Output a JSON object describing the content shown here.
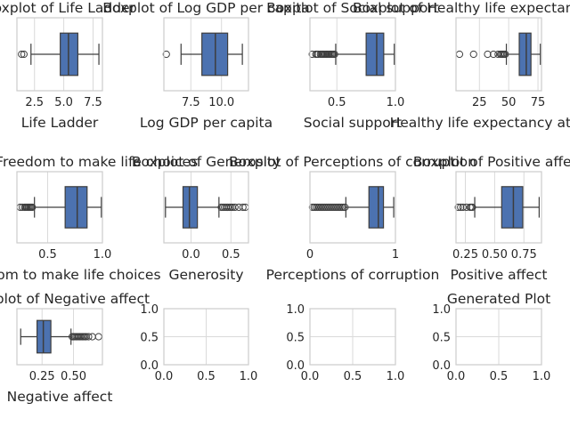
{
  "chart_data": [
    {
      "type": "box",
      "orient": "horizontal",
      "title": "Boxplot of Life Ladder",
      "xlabel": "Life Ladder",
      "ylabel": "",
      "xlim": [
        1.0,
        8.3
      ],
      "grid": true,
      "xticks": [
        2.5,
        5.0,
        7.5
      ],
      "xtick_labels": [
        "2.5",
        "5.0",
        "7.5"
      ],
      "stats": {
        "whislo": 2.2,
        "q1": 4.7,
        "med": 5.4,
        "q3": 6.2,
        "whishi": 8.0
      },
      "fliers": [
        1.4,
        1.6
      ]
    },
    {
      "type": "box",
      "orient": "horizontal",
      "title": "Boxplot of Log GDP per capita",
      "xlabel": "Log GDP per capita",
      "ylabel": "",
      "xlim": [
        5.3,
        12.2
      ],
      "grid": true,
      "xticks": [
        7.5,
        10.0
      ],
      "xtick_labels": [
        "7.5",
        "10.0"
      ],
      "stats": {
        "whislo": 6.7,
        "q1": 8.4,
        "med": 9.5,
        "q3": 10.5,
        "whishi": 11.7
      },
      "fliers": [
        5.5
      ]
    },
    {
      "type": "box",
      "orient": "horizontal",
      "title": "Boxplot of Social support",
      "xlabel": "Social support",
      "ylabel": "",
      "xlim": [
        0.27,
        1.0
      ],
      "grid": true,
      "xticks": [
        0.5,
        1.0
      ],
      "xtick_labels": [
        "0.5",
        "1.0"
      ],
      "stats": {
        "whislo": 0.49,
        "q1": 0.75,
        "med": 0.84,
        "q3": 0.9,
        "whishi": 0.99
      },
      "fliers": [
        0.29,
        0.32,
        0.33,
        0.34,
        0.36,
        0.37,
        0.38,
        0.39,
        0.4,
        0.41,
        0.42,
        0.43,
        0.44,
        0.45,
        0.46,
        0.47,
        0.48
      ]
    },
    {
      "type": "box",
      "orient": "horizontal",
      "title": "Boxplot of Healthy life expectancy at birth",
      "xlabel": "Healthy life expectancy at birth",
      "ylabel": "",
      "xlim": [
        5,
        78
      ],
      "grid": true,
      "xticks": [
        25,
        50,
        75
      ],
      "xtick_labels": [
        "25",
        "50",
        "75"
      ],
      "stats": {
        "whislo": 48,
        "q1": 59,
        "med": 65,
        "q3": 69,
        "whishi": 77
      },
      "fliers": [
        8,
        20,
        32,
        37,
        41,
        43,
        44,
        45,
        46,
        47
      ]
    },
    {
      "type": "box",
      "orient": "horizontal",
      "title": "Boxplot of Freedom to make life choices",
      "xlabel": "Freedom to make life choices",
      "ylabel": "",
      "xlim": [
        0.22,
        1.0
      ],
      "grid": true,
      "xticks": [
        0.5,
        1.0
      ],
      "xtick_labels": [
        "0.5",
        "1.0"
      ],
      "stats": {
        "whislo": 0.38,
        "q1": 0.66,
        "med": 0.77,
        "q3": 0.86,
        "whishi": 0.99
      },
      "fliers": [
        0.25,
        0.27,
        0.29,
        0.3,
        0.31,
        0.32,
        0.33,
        0.34,
        0.35,
        0.36
      ]
    },
    {
      "type": "box",
      "orient": "horizontal",
      "title": "Boxplot of Generosity",
      "xlabel": "Generosity",
      "ylabel": "",
      "xlim": [
        -0.34,
        0.72
      ],
      "grid": true,
      "xticks": [
        0.0,
        0.5
      ],
      "xtick_labels": [
        "0.0",
        "0.5"
      ],
      "stats": {
        "whislo": -0.32,
        "q1": -0.1,
        "med": -0.02,
        "q3": 0.08,
        "whishi": 0.35
      },
      "fliers": [
        0.38,
        0.4,
        0.42,
        0.44,
        0.46,
        0.48,
        0.5,
        0.52,
        0.55,
        0.6,
        0.65,
        0.68
      ]
    },
    {
      "type": "box",
      "orient": "horizontal",
      "title": "Boxplot of Perceptions of corruption",
      "xlabel": "Perceptions of corruption",
      "ylabel": "",
      "xlim": [
        0.0,
        1.0
      ],
      "grid": true,
      "xticks": [
        0,
        1
      ],
      "xtick_labels": [
        "0",
        "1"
      ],
      "stats": {
        "whislo": 0.42,
        "q1": 0.69,
        "med": 0.8,
        "q3": 0.86,
        "whishi": 0.98
      },
      "fliers": [
        0.03,
        0.05,
        0.07,
        0.09,
        0.11,
        0.13,
        0.15,
        0.17,
        0.19,
        0.21,
        0.23,
        0.25,
        0.27,
        0.29,
        0.31,
        0.33,
        0.35,
        0.37,
        0.39,
        0.41
      ]
    },
    {
      "type": "box",
      "orient": "horizontal",
      "title": "Boxplot of Positive affect",
      "xlabel": "Positive affect",
      "ylabel": "",
      "xlim": [
        0.17,
        0.9
      ],
      "grid": true,
      "xticks": [
        0.25,
        0.5,
        0.75
      ],
      "xtick_labels": [
        "0.25",
        "0.50",
        "0.75"
      ],
      "stats": {
        "whislo": 0.33,
        "q1": 0.56,
        "med": 0.66,
        "q3": 0.74,
        "whishi": 0.88
      },
      "fliers": [
        0.19,
        0.21,
        0.23,
        0.26,
        0.29,
        0.3,
        0.31
      ]
    },
    {
      "type": "box",
      "orient": "horizontal",
      "title": "Boxplot of Negative affect",
      "xlabel": "Negative affect",
      "ylabel": "",
      "xlim": [
        0.05,
        0.73
      ],
      "grid": true,
      "xticks": [
        0.25,
        0.5
      ],
      "xtick_labels": [
        "0.25",
        "0.50"
      ],
      "stats": {
        "whislo": 0.08,
        "q1": 0.21,
        "med": 0.26,
        "q3": 0.32,
        "whishi": 0.48
      },
      "fliers": [
        0.49,
        0.5,
        0.51,
        0.52,
        0.53,
        0.54,
        0.55,
        0.56,
        0.57,
        0.58,
        0.59,
        0.6,
        0.62,
        0.65,
        0.7
      ]
    },
    {
      "type": "empty",
      "title": "",
      "xlabel": "",
      "ylabel": "",
      "xlim": [
        0,
        1
      ],
      "ylim": [
        0,
        1
      ],
      "grid": true,
      "xticks": [
        0.0,
        0.5,
        1.0
      ],
      "xtick_labels": [
        "0.0",
        "0.5",
        "1.0"
      ],
      "yticks": [
        0.0,
        0.5,
        1.0
      ],
      "ytick_labels": [
        "0.0",
        "0.5",
        "1.0"
      ]
    },
    {
      "type": "empty",
      "title": "",
      "xlabel": "",
      "ylabel": "",
      "xlim": [
        0,
        1
      ],
      "ylim": [
        0,
        1
      ],
      "grid": true,
      "xticks": [
        0.0,
        0.5,
        1.0
      ],
      "xtick_labels": [
        "0.0",
        "0.5",
        "1.0"
      ],
      "yticks": [
        0.0,
        0.5,
        1.0
      ],
      "ytick_labels": [
        "0.0",
        "0.5",
        "1.0"
      ]
    },
    {
      "type": "empty",
      "title": "Generated Plot",
      "xlabel": "",
      "ylabel": "",
      "xlim": [
        0,
        1
      ],
      "ylim": [
        0,
        1
      ],
      "grid": true,
      "xticks": [
        0.0,
        0.5,
        1.0
      ],
      "xtick_labels": [
        "0.0",
        "0.5",
        "1.0"
      ],
      "yticks": [
        0.0,
        0.5,
        1.0
      ],
      "ytick_labels": [
        "0.0",
        "0.5",
        "1.0"
      ]
    }
  ],
  "colors": {
    "box_fill": "#4c72b0",
    "line": "#3d3d3d",
    "grid": "#dadada",
    "spine": "#cccccc",
    "text": "#262626"
  }
}
